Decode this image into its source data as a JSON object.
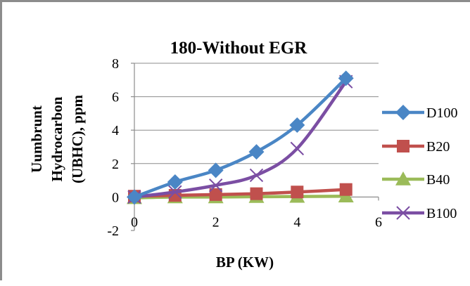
{
  "chart_data": {
    "type": "line",
    "title": "180-Without  EGR",
    "xlabel": "BP (KW)",
    "ylabel_lines": [
      "Uumbrunt",
      "Hydrocarbon",
      "(UBHC), ppm"
    ],
    "xlim": [
      0,
      6
    ],
    "ylim": [
      -2,
      8
    ],
    "x_ticks": [
      "0",
      "2",
      "4",
      "6"
    ],
    "y_ticks": [
      "-2",
      "0",
      "2",
      "4",
      "6",
      "8"
    ],
    "grid": "horizontal",
    "legend_position": "right",
    "series": [
      {
        "name": "D100",
        "color": "#4a86c5",
        "marker": "diamond",
        "x": [
          0,
          1,
          2,
          3,
          4,
          5.2
        ],
        "y": [
          0.0,
          0.9,
          1.6,
          2.7,
          4.3,
          7.1
        ]
      },
      {
        "name": "B20",
        "color": "#c0504d",
        "marker": "square",
        "x": [
          0,
          1,
          2,
          3,
          4,
          5.2
        ],
        "y": [
          0.05,
          0.1,
          0.15,
          0.2,
          0.3,
          0.45
        ]
      },
      {
        "name": "B40",
        "color": "#9bbb59",
        "marker": "triangle",
        "x": [
          0,
          1,
          2,
          3,
          4,
          5.2
        ],
        "y": [
          -0.05,
          0.0,
          0.0,
          0.02,
          0.03,
          0.05
        ]
      },
      {
        "name": "B100",
        "color": "#7b4ea3",
        "marker": "x",
        "x": [
          0,
          1,
          2,
          3,
          4,
          5.2
        ],
        "y": [
          0.0,
          0.3,
          0.7,
          1.3,
          2.9,
          6.9
        ]
      }
    ]
  }
}
